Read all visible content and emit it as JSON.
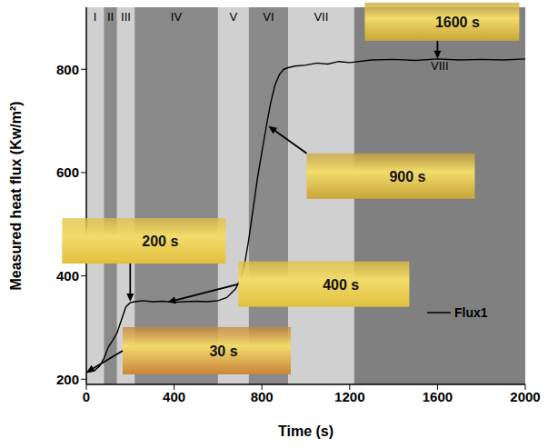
{
  "chart_data": {
    "type": "line",
    "x_label": "Time (s)",
    "y_label": "Measured heat flux (Kw/m²)",
    "xlim": [
      0,
      2000
    ],
    "xticks": [
      0,
      400,
      800,
      1200,
      1600,
      2000
    ],
    "ylim": [
      190,
      920
    ],
    "yticks": [
      200,
      400,
      600,
      800
    ],
    "grid": false,
    "legend": "lower right",
    "series": [
      {
        "name": "Flux1",
        "color": "#000000",
        "x": [
          0,
          20,
          40,
          60,
          80,
          100,
          120,
          140,
          160,
          180,
          200,
          220,
          260,
          300,
          350,
          400,
          450,
          500,
          550,
          600,
          640,
          680,
          700,
          720,
          740,
          760,
          780,
          800,
          820,
          840,
          860,
          880,
          900,
          920,
          950,
          1000,
          1050,
          1100,
          1150,
          1200,
          1300,
          1400,
          1500,
          1600,
          1700,
          1800,
          1900,
          2000
        ],
        "values": [
          213,
          215,
          218,
          225,
          240,
          262,
          275,
          290,
          315,
          340,
          348,
          350,
          352,
          350,
          351,
          349,
          350,
          351,
          350,
          352,
          358,
          375,
          392,
          420,
          470,
          530,
          590,
          640,
          690,
          735,
          770,
          790,
          800,
          803,
          806,
          808,
          812,
          810,
          815,
          813,
          818,
          819,
          817,
          820,
          818,
          819,
          818,
          820
        ]
      }
    ],
    "regions": [
      {
        "label": "I",
        "start": 0,
        "end": 80,
        "color": "#d0d0d0"
      },
      {
        "label": "II",
        "start": 80,
        "end": 140,
        "color": "#8a8a8a"
      },
      {
        "label": "III",
        "start": 140,
        "end": 220,
        "color": "#d0d0d0"
      },
      {
        "label": "IV",
        "start": 220,
        "end": 600,
        "color": "#8a8a8a"
      },
      {
        "label": "V",
        "start": 600,
        "end": 740,
        "color": "#d0d0d0"
      },
      {
        "label": "VI",
        "start": 740,
        "end": 920,
        "color": "#8a8a8a"
      },
      {
        "label": "VII",
        "start": 920,
        "end": 1220,
        "color": "#d0d0d0"
      },
      {
        "label": "VIII",
        "start": 1220,
        "end": 2000,
        "color": "#808080"
      }
    ],
    "annotations": [
      {
        "text": "30 s",
        "x": 0,
        "y": 213,
        "color": "#c8843c"
      },
      {
        "text": "200 s",
        "x": 200,
        "y": 350,
        "color": "#e0c040"
      },
      {
        "text": "400 s",
        "x": 370,
        "y": 349,
        "color": "#e0c040"
      },
      {
        "text": "900 s",
        "x": 830,
        "y": 690,
        "color": "#c9a53a"
      },
      {
        "text": "1600 s",
        "x": 1600,
        "y": 820,
        "color": "#c9a53a"
      }
    ]
  }
}
